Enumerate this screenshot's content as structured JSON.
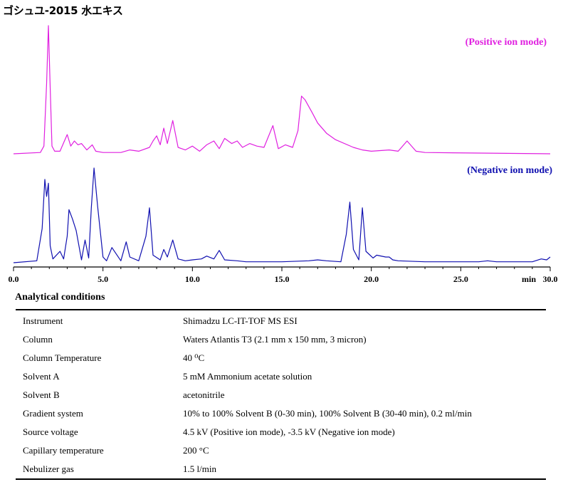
{
  "title": "ゴシュユ-2015 水エキス",
  "chart_data": {
    "type": "line",
    "xlabel": "min",
    "xlim": [
      0,
      30
    ],
    "xticks": [
      "0.0",
      "5.0",
      "10.0",
      "15.0",
      "20.0",
      "25.0",
      "30.0"
    ],
    "series": [
      {
        "name": "(Positive ion mode)",
        "color": "#e020e0",
        "x": [
          0,
          1.5,
          1.7,
          1.85,
          1.95,
          2.05,
          2.15,
          2.3,
          2.6,
          3.0,
          3.2,
          3.4,
          3.6,
          3.8,
          4.1,
          4.4,
          4.6,
          5.0,
          6.0,
          6.5,
          7.0,
          7.6,
          7.8,
          8.0,
          8.2,
          8.4,
          8.6,
          8.9,
          9.2,
          9.6,
          10.0,
          10.4,
          10.8,
          11.2,
          11.5,
          11.8,
          12.2,
          12.5,
          12.8,
          13.2,
          13.6,
          14.0,
          14.5,
          14.8,
          15.2,
          15.6,
          15.9,
          16.1,
          16.3,
          16.7,
          17.0,
          17.5,
          18.0,
          19.0,
          19.5,
          20.0,
          21.0,
          21.5,
          22.0,
          22.5,
          23.0,
          30.0
        ],
        "y": [
          0,
          1,
          6,
          55,
          100,
          52,
          6,
          2,
          2,
          15,
          6,
          10,
          7,
          8,
          3,
          7,
          2,
          1,
          1,
          3,
          2,
          5,
          10,
          14,
          7,
          20,
          8,
          26,
          5,
          3,
          6,
          2,
          7,
          10,
          4,
          12,
          8,
          10,
          5,
          8,
          6,
          5,
          22,
          4,
          7,
          5,
          18,
          45,
          42,
          32,
          24,
          16,
          11,
          5,
          3,
          2,
          3,
          2,
          10,
          2,
          1,
          0
        ]
      },
      {
        "name": "(Negative ion mode)",
        "color": "#1010b0",
        "x": [
          0,
          1.3,
          1.6,
          1.75,
          1.85,
          1.95,
          2.05,
          2.2,
          2.6,
          2.8,
          3.0,
          3.1,
          3.3,
          3.5,
          3.8,
          4.0,
          4.2,
          4.35,
          4.5,
          4.7,
          5.0,
          5.2,
          5.5,
          6.0,
          6.3,
          6.5,
          7.0,
          7.4,
          7.6,
          7.8,
          8.2,
          8.4,
          8.6,
          8.9,
          9.2,
          9.6,
          10.0,
          10.5,
          10.8,
          11.2,
          11.5,
          11.8,
          12.5,
          13.0,
          14.5,
          15.0,
          16.5,
          17.0,
          17.5,
          18.3,
          18.6,
          18.8,
          19.0,
          19.3,
          19.5,
          19.7,
          20.1,
          20.3,
          20.8,
          21.0,
          21.2,
          21.5,
          23.0,
          26.0,
          26.5,
          27.0,
          29.0,
          29.5,
          29.8,
          30.0
        ],
        "y": [
          0,
          2,
          36,
          88,
          70,
          84,
          18,
          4,
          12,
          4,
          28,
          56,
          46,
          34,
          3,
          24,
          5,
          58,
          100,
          60,
          6,
          2,
          16,
          2,
          22,
          6,
          2,
          28,
          58,
          8,
          3,
          14,
          6,
          24,
          4,
          2,
          3,
          4,
          7,
          4,
          13,
          3,
          2,
          1,
          1,
          1,
          2,
          3,
          2,
          1,
          30,
          64,
          14,
          3,
          58,
          12,
          5,
          8,
          6,
          6,
          3,
          2,
          1,
          1,
          2,
          1,
          1,
          4,
          3,
          6
        ]
      }
    ]
  },
  "conditions": {
    "heading": "Analytical conditions",
    "rows": [
      {
        "label": "Instrument",
        "value": "Shimadzu LC-IT-TOF MS ESI"
      },
      {
        "label": "Column",
        "value": "Waters Atlantis T3 (2.1 mm x 150 mm, 3 micron)"
      },
      {
        "label": "Column Temperature",
        "value": "40 ⁰C"
      },
      {
        "label": "Solvent A",
        "value": "5 mM Ammonium acetate solution"
      },
      {
        "label": "Solvent B",
        "value": "acetonitrile"
      },
      {
        "label": "Gradient system",
        "value": "10% to 100% Solvent B (0-30 min), 100% Solvent B (30-40 min), 0.2 ml/min"
      },
      {
        "label": "Source voltage",
        "value": "4.5 kV (Positive ion mode), -3.5 kV (Negative ion mode)"
      },
      {
        "label": "Capillary temperature",
        "value": "200 °C"
      },
      {
        "label": "Nebulizer gas",
        "value": "1.5 l/min"
      }
    ]
  }
}
